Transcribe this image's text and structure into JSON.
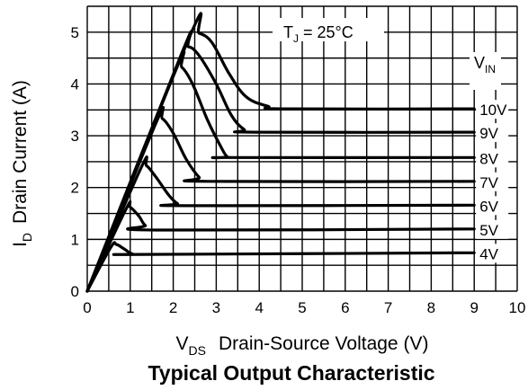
{
  "chart_data": {
    "type": "line",
    "title": "Typical Output Characteristic",
    "xlabel": {
      "main": "V",
      "sub": "DS",
      "rest": "Drain-Source Voltage (V)"
    },
    "ylabel": {
      "main": "I",
      "sub": "D",
      "rest": "Drain Current (A)"
    },
    "xlim": [
      0,
      10
    ],
    "ylim": [
      0,
      5.5
    ],
    "x_ticks": [
      "0",
      "1",
      "2",
      "3",
      "4",
      "5",
      "6",
      "7",
      "8",
      "9",
      "10"
    ],
    "y_ticks": [
      "0",
      "1",
      "2",
      "3",
      "4",
      "5"
    ],
    "grid": true,
    "annotation": {
      "main": "T",
      "sub": "J",
      "rest": " = 25°C"
    },
    "legend_header": {
      "main": "V",
      "sub": "IN"
    },
    "series": [
      {
        "name": "10V",
        "points": [
          [
            0,
            0
          ],
          [
            2.4,
            4.95
          ],
          [
            2.6,
            4.98
          ],
          [
            2.9,
            4.8
          ],
          [
            3.3,
            4.2
          ],
          [
            3.7,
            3.75
          ],
          [
            4.2,
            3.57
          ],
          [
            4.6,
            3.52
          ],
          [
            9.0,
            3.52
          ]
        ]
      },
      {
        "name": "9V",
        "points": [
          [
            0,
            0
          ],
          [
            2.2,
            4.6
          ],
          [
            2.35,
            4.72
          ],
          [
            2.6,
            4.55
          ],
          [
            3.0,
            4.0
          ],
          [
            3.35,
            3.4
          ],
          [
            3.65,
            3.12
          ],
          [
            3.9,
            3.07
          ],
          [
            9.0,
            3.07
          ]
        ]
      },
      {
        "name": "8V",
        "points": [
          [
            0,
            0
          ],
          [
            2.05,
            4.25
          ],
          [
            2.2,
            4.32
          ],
          [
            2.45,
            4.0
          ],
          [
            2.8,
            3.3
          ],
          [
            3.1,
            2.8
          ],
          [
            3.25,
            2.6
          ],
          [
            3.4,
            2.58
          ],
          [
            9.0,
            2.58
          ]
        ]
      },
      {
        "name": "7V",
        "points": [
          [
            0,
            0
          ],
          [
            1.6,
            3.25
          ],
          [
            1.75,
            3.33
          ],
          [
            2.0,
            3.05
          ],
          [
            2.3,
            2.55
          ],
          [
            2.6,
            2.2
          ],
          [
            2.8,
            2.12
          ],
          [
            9.0,
            2.12
          ]
        ]
      },
      {
        "name": "6V",
        "points": [
          [
            0,
            0
          ],
          [
            1.25,
            2.38
          ],
          [
            1.38,
            2.42
          ],
          [
            1.6,
            2.2
          ],
          [
            1.9,
            1.85
          ],
          [
            2.1,
            1.69
          ],
          [
            2.3,
            1.65
          ],
          [
            9.0,
            1.66
          ]
        ]
      },
      {
        "name": "5V",
        "points": [
          [
            0,
            0
          ],
          [
            0.9,
            1.58
          ],
          [
            1.0,
            1.62
          ],
          [
            1.2,
            1.45
          ],
          [
            1.35,
            1.27
          ],
          [
            1.6,
            1.18
          ],
          [
            9.0,
            1.2
          ]
        ]
      },
      {
        "name": "4V",
        "points": [
          [
            0,
            0
          ],
          [
            0.55,
            0.85
          ],
          [
            0.68,
            0.9
          ],
          [
            0.85,
            0.82
          ],
          [
            1.05,
            0.72
          ],
          [
            1.3,
            0.71
          ],
          [
            9.0,
            0.74
          ]
        ]
      }
    ]
  }
}
